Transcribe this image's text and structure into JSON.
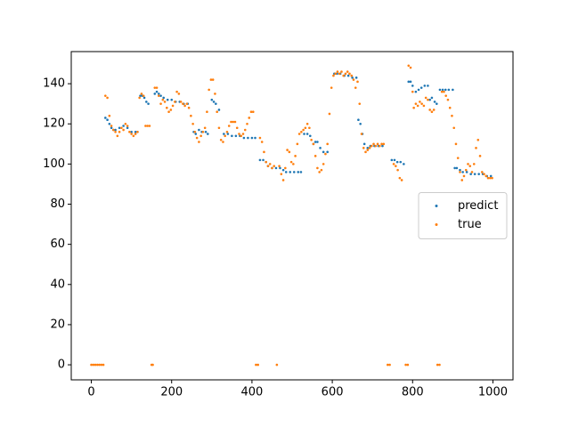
{
  "chart_data": {
    "type": "scatter",
    "xlim": [
      -50,
      1050
    ],
    "ylim": [
      -7.5,
      156
    ],
    "xticks": [
      0,
      200,
      400,
      600,
      800,
      1000
    ],
    "yticks": [
      0,
      20,
      40,
      60,
      80,
      100,
      120,
      140
    ],
    "legend": "center right",
    "grid": false,
    "series": [
      {
        "name": "predict",
        "color": "#1f77b4",
        "x": [
          35,
          40,
          45,
          50,
          55,
          60,
          70,
          80,
          90,
          100,
          110,
          115,
          122,
          127,
          132,
          137,
          142,
          158,
          163,
          168,
          173,
          180,
          190,
          200,
          210,
          220,
          230,
          240,
          255,
          260,
          268,
          275,
          285,
          290,
          300,
          305,
          310,
          318,
          330,
          340,
          350,
          360,
          370,
          380,
          390,
          400,
          408,
          420,
          428,
          435,
          440,
          450,
          460,
          470,
          478,
          485,
          495,
          505,
          515,
          522,
          530,
          538,
          545,
          553,
          558,
          563,
          570,
          578,
          588,
          605,
          612,
          620,
          630,
          640,
          650,
          660,
          665,
          670,
          675,
          680,
          688,
          695,
          705,
          715,
          725,
          748,
          755,
          762,
          770,
          778,
          790,
          795,
          800,
          808,
          815,
          822,
          830,
          838,
          843,
          848,
          855,
          860,
          868,
          875,
          882,
          890,
          900,
          905,
          910,
          918,
          925,
          935,
          945,
          955,
          965,
          975,
          985,
          995
        ],
        "values": [
          123,
          122,
          120,
          118,
          117,
          117,
          118,
          119,
          118,
          116,
          116,
          116,
          134,
          134,
          133,
          131,
          130,
          135,
          136,
          135,
          134,
          133,
          132,
          132,
          131,
          131,
          130,
          130,
          116,
          115,
          117,
          116,
          116,
          115,
          132,
          131,
          130,
          127,
          115,
          115,
          114,
          114,
          114,
          113,
          113,
          113,
          113,
          102,
          102,
          101,
          99,
          98,
          98,
          98,
          97,
          96,
          96,
          96,
          96,
          96,
          115,
          115,
          114,
          110,
          111,
          111,
          108,
          106,
          106,
          145,
          145,
          145,
          144,
          144,
          143,
          143,
          122,
          120,
          115,
          110,
          108,
          109,
          109,
          109,
          109,
          102,
          102,
          101,
          101,
          100,
          141,
          141,
          139,
          136,
          137,
          138,
          139,
          139,
          132,
          133,
          131,
          130,
          137,
          137,
          137,
          137,
          137,
          98,
          98,
          97,
          96,
          96,
          95,
          95,
          95,
          95,
          94,
          94
        ]
      },
      {
        "name": "true",
        "color": "#ff7f0e",
        "x": [
          0,
          5,
          10,
          15,
          20,
          25,
          30,
          35,
          40,
          45,
          50,
          55,
          60,
          65,
          70,
          75,
          80,
          85,
          90,
          95,
          100,
          105,
          110,
          115,
          120,
          125,
          130,
          135,
          140,
          145,
          150,
          153,
          158,
          163,
          168,
          173,
          178,
          183,
          188,
          193,
          198,
          203,
          208,
          213,
          218,
          223,
          228,
          233,
          238,
          243,
          248,
          253,
          258,
          263,
          268,
          273,
          278,
          283,
          288,
          293,
          298,
          303,
          308,
          313,
          318,
          323,
          328,
          333,
          338,
          343,
          348,
          353,
          358,
          363,
          368,
          373,
          378,
          383,
          388,
          393,
          398,
          403,
          410,
          415,
          420,
          425,
          430,
          435,
          440,
          445,
          450,
          455,
          462,
          468,
          473,
          478,
          483,
          488,
          493,
          498,
          503,
          508,
          513,
          518,
          523,
          528,
          533,
          538,
          543,
          548,
          553,
          558,
          563,
          568,
          573,
          578,
          583,
          588,
          593,
          598,
          603,
          608,
          613,
          618,
          623,
          628,
          633,
          638,
          643,
          648,
          653,
          658,
          663,
          668,
          673,
          678,
          683,
          688,
          693,
          698,
          703,
          708,
          713,
          718,
          723,
          728,
          738,
          743,
          753,
          758,
          763,
          768,
          773,
          783,
          788,
          790,
          795,
          800,
          803,
          808,
          813,
          818,
          823,
          828,
          833,
          838,
          843,
          848,
          853,
          862,
          867,
          873,
          878,
          883,
          888,
          893,
          898,
          903,
          908,
          913,
          918,
          923,
          928,
          933,
          938,
          943,
          948,
          953,
          958,
          963,
          968,
          973,
          978,
          983,
          988,
          993,
          998
        ],
        "values": [
          0,
          0,
          0,
          0,
          0,
          0,
          0,
          134,
          133,
          124,
          119,
          117,
          116,
          114,
          116,
          118,
          117,
          120,
          119,
          116,
          115,
          114,
          115,
          116,
          133,
          135,
          134,
          119,
          119,
          119,
          0,
          0,
          138,
          138,
          134,
          130,
          132,
          131,
          128,
          126,
          127,
          129,
          131,
          136,
          135,
          131,
          130,
          129,
          130,
          128,
          124,
          120,
          116,
          113,
          111,
          114,
          116,
          118,
          126,
          137,
          142,
          142,
          135,
          126,
          118,
          112,
          111,
          114,
          116,
          119,
          121,
          121,
          121,
          118,
          115,
          114,
          115,
          117,
          120,
          123,
          126,
          126,
          0,
          0,
          113,
          111,
          106,
          101,
          99,
          100,
          98,
          99,
          0,
          99,
          95,
          92,
          98,
          107,
          106,
          101,
          100,
          104,
          110,
          115,
          116,
          117,
          118,
          120,
          118,
          112,
          110,
          104,
          98,
          96,
          97,
          100,
          105,
          110,
          125,
          138,
          144,
          145,
          146,
          145,
          146,
          144,
          145,
          146,
          145,
          144,
          142,
          138,
          141,
          130,
          115,
          108,
          106,
          107,
          108,
          109,
          110,
          109,
          110,
          109,
          110,
          110,
          0,
          0,
          100,
          99,
          97,
          93,
          92,
          0,
          0,
          149,
          148,
          136,
          128,
          130,
          129,
          131,
          130,
          129,
          133,
          132,
          127,
          126,
          127,
          0,
          0,
          136,
          136,
          134,
          132,
          128,
          124,
          118,
          110,
          103,
          96,
          92,
          94,
          97,
          100,
          99,
          96,
          100,
          108,
          112,
          104,
          96,
          95,
          94,
          93,
          93,
          93
        ]
      }
    ]
  }
}
